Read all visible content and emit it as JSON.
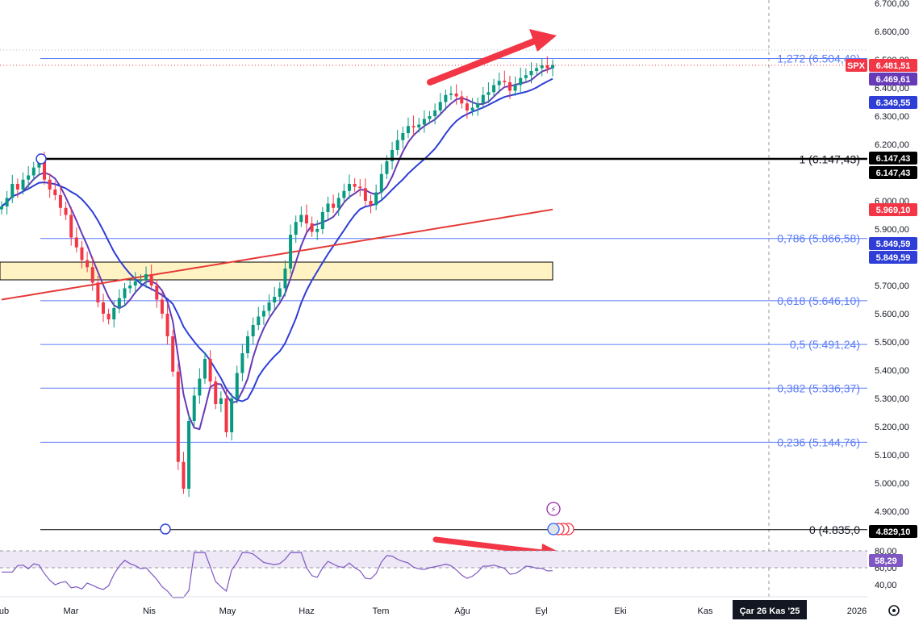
{
  "chart_data": {
    "type": "candlestick",
    "symbol": "SPX",
    "price_axis": {
      "min": 4750,
      "max": 6720,
      "ticks": [
        "6.700,00",
        "6.600,00",
        "6.500,00",
        "6.400,00",
        "6.300,00",
        "6.200,00",
        "6.100,00",
        "6.000,00",
        "5.900,00",
        "5.800,00",
        "5.700,00",
        "5.600,00",
        "5.500,00",
        "5.400,00",
        "5.300,00",
        "5.200,00",
        "5.100,00",
        "5.000,00",
        "4.900,00"
      ],
      "tick_values": [
        6700,
        6600,
        6500,
        6400,
        6300,
        6200,
        6100,
        6000,
        5900,
        5800,
        5700,
        5600,
        5500,
        5400,
        5300,
        5200,
        5100,
        5000,
        4900
      ]
    },
    "time_axis": {
      "labels": [
        "ub",
        "Mar",
        "Nis",
        "May",
        "Haz",
        "Tem",
        "Ağu",
        "Eyl",
        "Eki",
        "Kas",
        "2026"
      ],
      "crosshair_label": "Çar 26 Kas '25"
    },
    "fibonacci": [
      {
        "level": "1,272",
        "value": 6504.4,
        "text": "1,272 (6.504,40)"
      },
      {
        "level": "1",
        "value": 6147.43,
        "text": "1 (6.147,43)"
      },
      {
        "level": "0,786",
        "value": 5866.58,
        "text": "0,786 (5.866,58)"
      },
      {
        "level": "0,618",
        "value": 5646.1,
        "text": "0,618 (5.646,10)"
      },
      {
        "level": "0,5",
        "value": 5491.24,
        "text": "0,5 (5.491,24)"
      },
      {
        "level": "0,382",
        "value": 5336.37,
        "text": "0,382 (5.336,37)"
      },
      {
        "level": "0,236",
        "value": 5144.76,
        "text": "0,236 (5.144,76)"
      },
      {
        "level": "0",
        "value": 4835.0,
        "text": "0 (4.835,0"
      }
    ],
    "price_badges": [
      {
        "label": "SPX",
        "value": "6.481,51",
        "color": "#f23645"
      },
      {
        "value": "6.469,61",
        "color": "#673ab7"
      },
      {
        "value": "6.349,55",
        "color": "#2e3ed6"
      },
      {
        "value": "6.147,43",
        "color": "#000000"
      },
      {
        "value": "6.147,43",
        "color": "#000000"
      },
      {
        "value": "5.969,10",
        "color": "#f23645"
      },
      {
        "value": "5.849,59",
        "color": "#2e3ed6"
      },
      {
        "value": "5.849,59",
        "color": "#2e3ed6"
      },
      {
        "value": "4.829,10",
        "color": "#000000"
      }
    ],
    "rsi": {
      "ticks": [
        "80,00",
        "60,00",
        "40,00"
      ],
      "tick_values": [
        80,
        60,
        40
      ],
      "current": "58,29"
    },
    "closes": [
      5980,
      6010,
      6060,
      6040,
      6075,
      6090,
      6118,
      6140,
      6075,
      6040,
      6020,
      5975,
      5950,
      5870,
      5835,
      5790,
      5765,
      5710,
      5640,
      5600,
      5580,
      5620,
      5655,
      5690,
      5700,
      5715,
      5720,
      5740,
      5700,
      5650,
      5600,
      5520,
      5395,
      5075,
      4980,
      5220,
      5310,
      5370,
      5440,
      5360,
      5280,
      5300,
      5180,
      5300,
      5390,
      5460,
      5520,
      5560,
      5590,
      5610,
      5640,
      5660,
      5690,
      5760,
      5880,
      5925,
      5950,
      5920,
      5890,
      5900,
      5960,
      5990,
      5975,
      6010,
      6035,
      6060,
      6050,
      6045,
      6000,
      5985,
      6030,
      6095,
      6140,
      6180,
      6215,
      6240,
      6265,
      6260,
      6270,
      6290,
      6300,
      6320,
      6350,
      6375,
      6380,
      6370,
      6345,
      6320,
      6330,
      6345,
      6375,
      6385,
      6410,
      6425,
      6420,
      6390,
      6410,
      6435,
      6445,
      6460,
      6470,
      6480,
      6470,
      6481.51
    ],
    "colors": {
      "up": "#089981",
      "down": "#f23645",
      "ema_fast": "#673ab7",
      "ema_mid": "#2e3ed6",
      "ema_slow": "#e53935",
      "fib": "#5b7cf7",
      "zone": "#fff3c4"
    },
    "annotations": [
      {
        "type": "arrow",
        "color": "#f23645",
        "panel": "price"
      },
      {
        "type": "arrow",
        "color": "#f23645",
        "panel": "rsi"
      },
      {
        "type": "horizontal_line",
        "value": 6147.43,
        "color": "#000000"
      },
      {
        "type": "rectangle",
        "from": 5720,
        "to": 5780,
        "color": "#fff3c4"
      }
    ]
  },
  "toolbar": {
    "settings_icon": "gear-icon"
  }
}
